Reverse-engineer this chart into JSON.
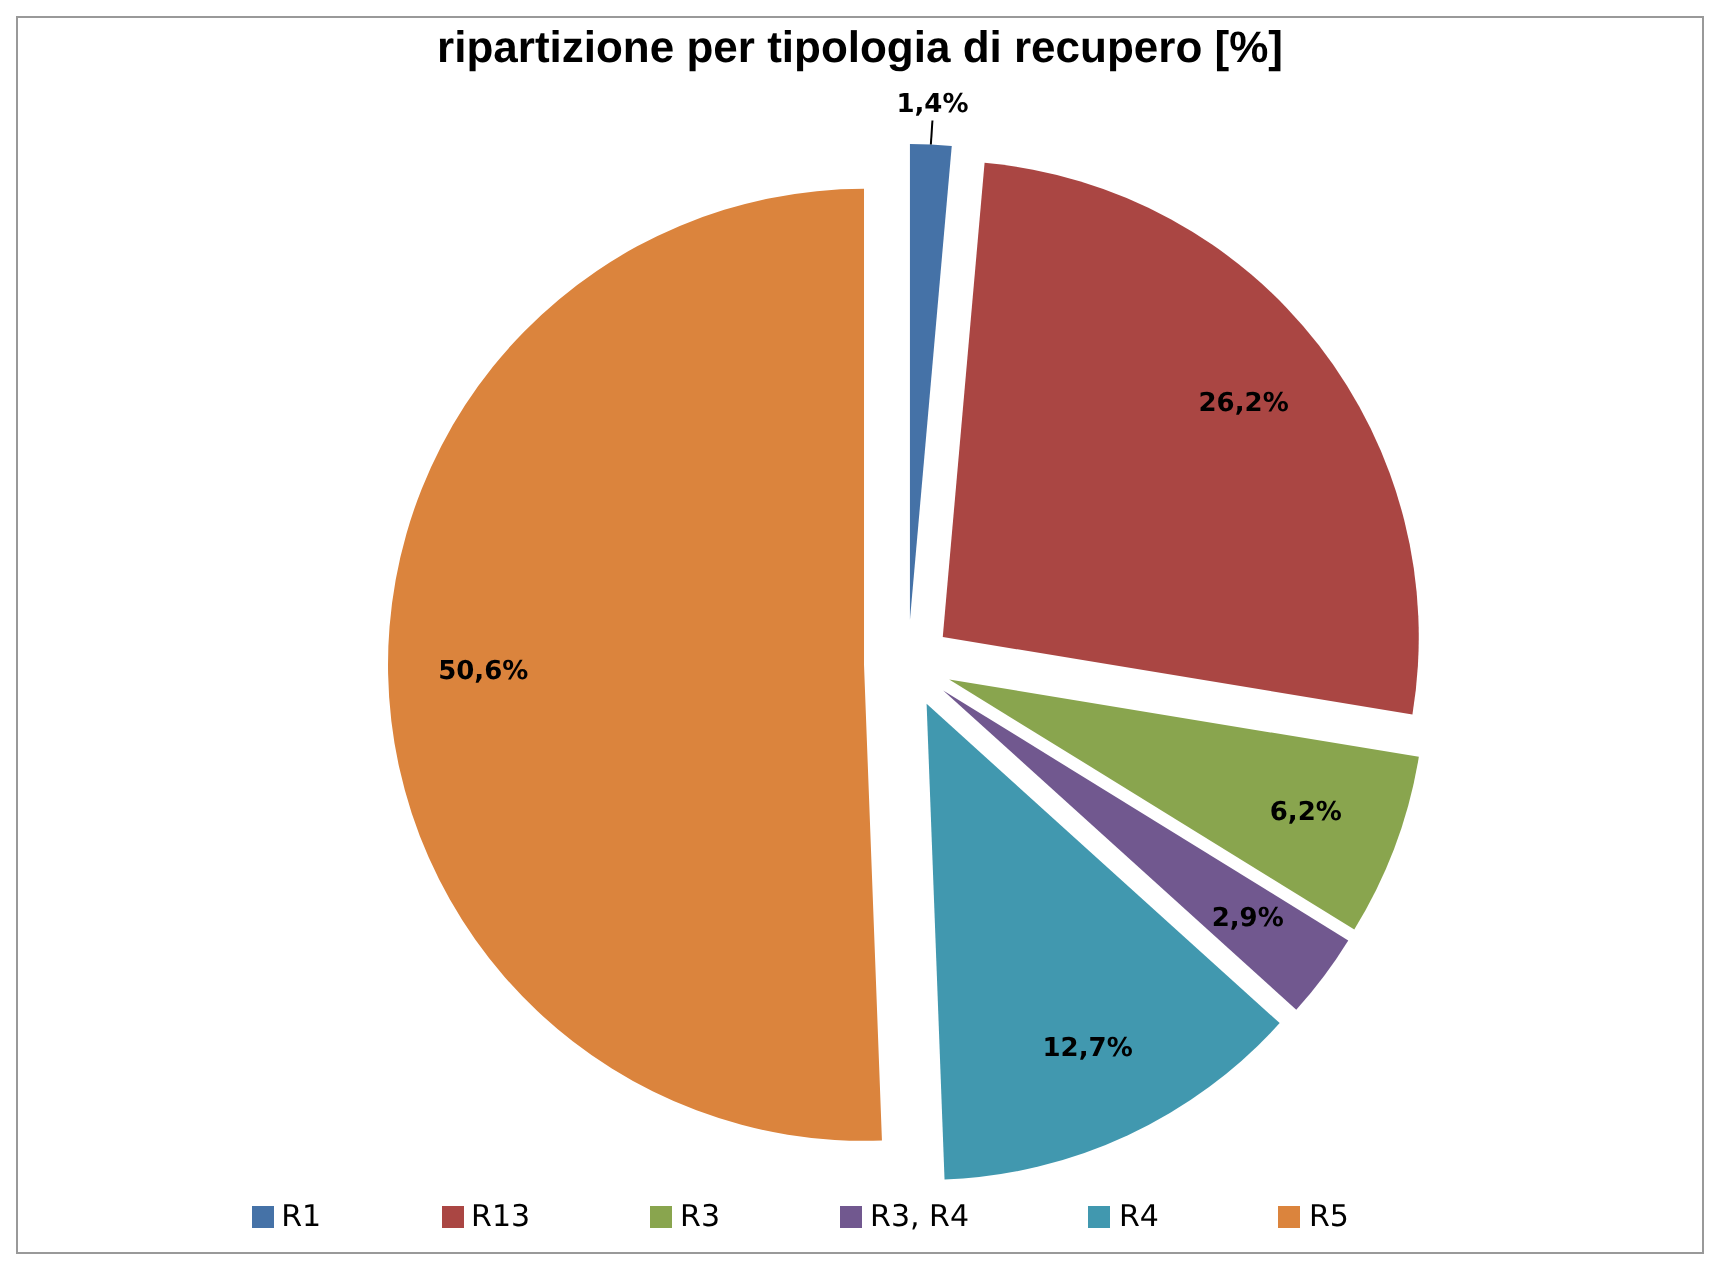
{
  "chart_data": {
    "type": "pie",
    "title": "ripartizione per tipologia di recupero [%]",
    "categories": [
      "R1",
      "R13",
      "R3",
      "R3, R4",
      "R4",
      "R5"
    ],
    "values": [
      1.4,
      26.2,
      6.2,
      2.9,
      12.7,
      50.6
    ],
    "colors": [
      "#4572a7",
      "#aa4643",
      "#89a54e",
      "#71588f",
      "#4198af",
      "#db843d"
    ],
    "value_labels": [
      "1,4%",
      "26,2%",
      "6,2%",
      "2,9%",
      "12,7%",
      "50,6%"
    ],
    "legend": "bottom"
  }
}
